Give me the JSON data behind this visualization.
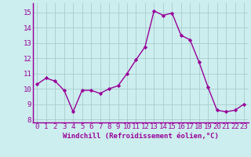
{
  "x": [
    0,
    1,
    2,
    3,
    4,
    5,
    6,
    7,
    8,
    9,
    10,
    11,
    12,
    13,
    14,
    15,
    16,
    17,
    18,
    19,
    20,
    21,
    22,
    23
  ],
  "y": [
    10.3,
    10.7,
    10.5,
    9.9,
    8.5,
    9.9,
    9.9,
    9.7,
    10.0,
    10.2,
    11.0,
    11.9,
    12.75,
    15.1,
    14.8,
    14.95,
    13.5,
    13.2,
    11.75,
    10.1,
    8.6,
    8.5,
    8.6,
    9.0
  ],
  "line_color": "#990099",
  "marker": "D",
  "marker_size": 2.2,
  "linewidth": 1.0,
  "bg_color": "#cceeee",
  "grid_color": "#aacccc",
  "xlabel": "Windchill (Refroidissement éolien,°C)",
  "xlabel_fontsize": 6.5,
  "xlabel_color": "#990099",
  "ylabel_ticks": [
    8,
    9,
    10,
    11,
    12,
    13,
    14,
    15
  ],
  "xlim": [
    -0.5,
    23.5
  ],
  "ylim": [
    7.8,
    15.6
  ],
  "tick_fontsize": 6.5,
  "tick_color": "#990099"
}
